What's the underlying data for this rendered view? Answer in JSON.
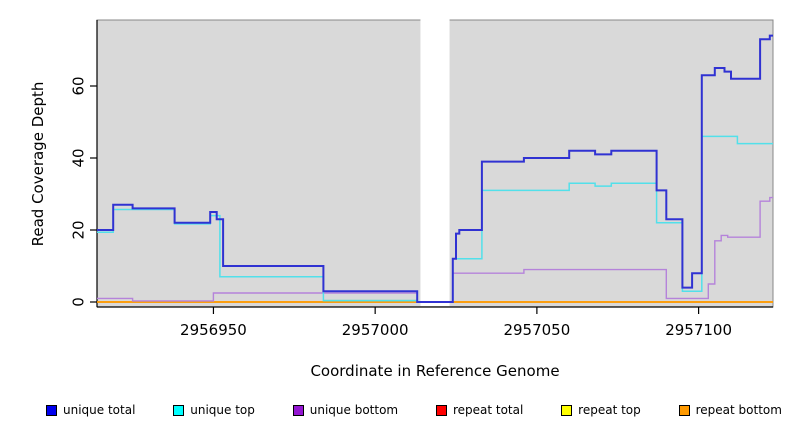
{
  "chart_data": {
    "type": "line",
    "subtype": "step",
    "title": "",
    "xlabel": "Coordinate in Reference Genome",
    "ylabel": "Read Coverage Depth",
    "xlim": [
      2956914,
      2957123
    ],
    "ylim": [
      0,
      78
    ],
    "xticks": [
      2956950,
      2957000,
      2957050,
      2957100
    ],
    "yticks": [
      0,
      20,
      40,
      60
    ],
    "grid": false,
    "legend_position": "bottom",
    "plot_bg": "#d9d9d9",
    "axis_color": "#000000",
    "box_color": "#888888",
    "gap": {
      "start": 2957014,
      "end": 2957023,
      "note": "white masked region; only unique-total line at 0 crosses it"
    },
    "series": [
      {
        "name": "repeat total",
        "line_color": "#d82828",
        "legend_color": "#ff0000",
        "width": 1.2,
        "points": [
          [
            2956914,
            0
          ]
        ]
      },
      {
        "name": "repeat top",
        "line_color": "#f5f500",
        "legend_color": "#ffff00",
        "width": 1.2,
        "points": [
          [
            2956914,
            0
          ]
        ]
      },
      {
        "name": "repeat bottom",
        "line_color": "#ff9a00",
        "legend_color": "#ff9a00",
        "width": 1.8,
        "points": [
          [
            2956914,
            0
          ]
        ]
      },
      {
        "name": "unique bottom",
        "line_color": "#b583da",
        "legend_color": "#9416d2",
        "width": 1.4,
        "points": [
          [
            2956914,
            1
          ],
          [
            2956925,
            0.3
          ],
          [
            2956950,
            2.5
          ],
          [
            2957013,
            0
          ],
          [
            2957024,
            8
          ],
          [
            2957046,
            9
          ],
          [
            2957090,
            1
          ],
          [
            2957103,
            5
          ],
          [
            2957105,
            17
          ],
          [
            2957107,
            18.5
          ],
          [
            2957109,
            18
          ],
          [
            2957119,
            28
          ],
          [
            2957122,
            29
          ]
        ]
      },
      {
        "name": "unique top",
        "line_color": "#52e0ea",
        "legend_color": "#00ffff",
        "width": 1.5,
        "points": [
          [
            2956914,
            19.4
          ],
          [
            2956919,
            25.7
          ],
          [
            2956938,
            21.7
          ],
          [
            2956949,
            24
          ],
          [
            2956952,
            7
          ],
          [
            2956984,
            0.4
          ],
          [
            2957013,
            0
          ],
          [
            2957024,
            12
          ],
          [
            2957033,
            31
          ],
          [
            2957060,
            33
          ],
          [
            2957068,
            32.2
          ],
          [
            2957073,
            33
          ],
          [
            2957087,
            22
          ],
          [
            2957095,
            3
          ],
          [
            2957101,
            46
          ],
          [
            2957112,
            44
          ]
        ]
      },
      {
        "name": "unique total",
        "line_color": "#3032d2",
        "legend_color": "#0000ee",
        "width": 2,
        "points": [
          [
            2956914,
            20
          ],
          [
            2956919,
            27
          ],
          [
            2956925,
            26
          ],
          [
            2956938,
            22
          ],
          [
            2956949,
            25
          ],
          [
            2956951,
            23
          ],
          [
            2956953,
            10
          ],
          [
            2956984,
            3
          ],
          [
            2957013,
            0
          ],
          [
            2957024,
            12
          ],
          [
            2957025,
            19
          ],
          [
            2957026,
            20
          ],
          [
            2957033,
            39
          ],
          [
            2957046,
            40
          ],
          [
            2957060,
            42
          ],
          [
            2957068,
            41
          ],
          [
            2957073,
            42
          ],
          [
            2957087,
            31
          ],
          [
            2957090,
            23
          ],
          [
            2957095,
            4
          ],
          [
            2957098,
            8
          ],
          [
            2957101,
            63
          ],
          [
            2957105,
            65
          ],
          [
            2957108,
            64
          ],
          [
            2957110,
            62
          ],
          [
            2957119,
            73
          ],
          [
            2957122,
            74
          ]
        ]
      }
    ],
    "legend_order": [
      "unique total",
      "unique top",
      "unique bottom",
      "repeat total",
      "repeat top",
      "repeat bottom"
    ],
    "artifact_segment": {
      "color": "#7cc87c",
      "start": 2956984,
      "end": 2957013,
      "value": 0.4,
      "note": "greenish baseline segment visible where top-strand lines sit at zero"
    }
  }
}
